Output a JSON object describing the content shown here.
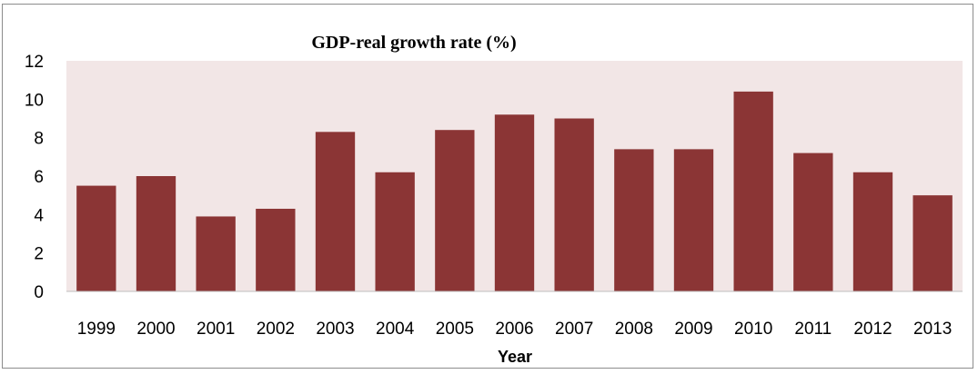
{
  "chart_data": {
    "type": "bar",
    "title": "GDP-real growth rate (%)",
    "xlabel": "Year",
    "ylabel": "",
    "ylim": [
      0,
      12
    ],
    "yticks": [
      "0",
      "2",
      "4",
      "6",
      "8",
      "10",
      "12"
    ],
    "categories": [
      "1999",
      "2000",
      "2001",
      "2002",
      "2003",
      "2004",
      "2005",
      "2006",
      "2007",
      "2008",
      "2009",
      "2010",
      "2011",
      "2012",
      "2013"
    ],
    "values": [
      5.5,
      6.0,
      3.9,
      4.3,
      8.3,
      6.2,
      8.4,
      9.2,
      9.0,
      7.4,
      7.4,
      10.4,
      7.2,
      6.2,
      5.0
    ],
    "bar_color": "#8b3535",
    "plot_background": "#f2e6e6",
    "grid": false,
    "legend": "none"
  }
}
